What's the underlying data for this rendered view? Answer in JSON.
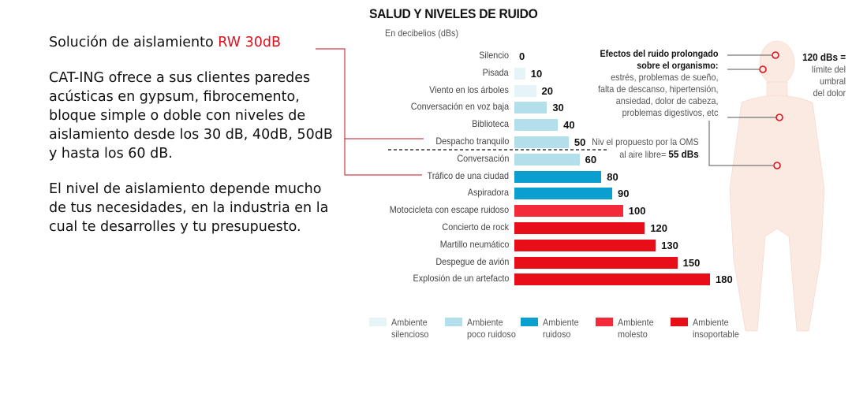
{
  "promo": {
    "heading_prefix": "Solución de aislamiento ",
    "heading_highlight": "RW 30dB",
    "paragraph1": "CAT-ING ofrece a sus clientes paredes acústicas en gypsum, fibrocemento, bloque simple o doble con niveles de aislamiento desde los 30 dB, 40dB, 50dB y hasta los 60 dB.",
    "paragraph2": "El nivel de aislamiento depende mucho de tus necesidades, en la industria en la cual te desarrolles y tu presupuesto."
  },
  "chart_data": {
    "type": "bar",
    "orientation": "horizontal",
    "title": "SALUD Y NIVELES DE RUIDO",
    "subtitle": "En decibelios (dBs)",
    "categories": [
      "Silencio",
      "Pisada",
      "Viento en los árboles",
      "Conversación en voz baja",
      "Biblioteca",
      "Despacho tranquilo",
      "Conversación",
      "Tráfico de una ciudad",
      "Aspiradora",
      "Motocicleta con escape ruidoso",
      "Concierto de rock",
      "Martillo neumático",
      "Despegue de avión",
      "Explosión de un artefacto"
    ],
    "values": [
      0,
      10,
      20,
      30,
      40,
      50,
      60,
      80,
      90,
      100,
      120,
      130,
      150,
      180
    ],
    "classes": [
      0,
      0,
      0,
      1,
      1,
      1,
      1,
      2,
      2,
      3,
      4,
      4,
      4,
      4
    ],
    "xlim": [
      0,
      180
    ],
    "legend": [
      {
        "line1": "Ambiente",
        "line2": "silencioso",
        "color": "#e6f3f7"
      },
      {
        "line1": "Ambiente",
        "line2": "poco ruidoso",
        "color": "#b3dfea"
      },
      {
        "line1": "Ambiente",
        "line2": "ruidoso",
        "color": "#0a9fcf"
      },
      {
        "line1": "Ambiente",
        "line2": "molesto",
        "color": "#f22a3a"
      },
      {
        "line1": "Ambiente",
        "line2": "insoportable",
        "color": "#e80e18"
      }
    ],
    "legend_position": "bottom",
    "reference_line": {
      "value": 55,
      "label_line1": "Niv el propuesto por la OMS",
      "label_line2_prefix": "al aire libre= ",
      "label_line2_value": "55 dBs"
    }
  },
  "effects": {
    "title_line1": "Efectos del ruido prolongado",
    "title_line2": "sobre el  organismo:",
    "lines": [
      "estrés, problemas de sueño,",
      "falta de descanso, hipertensión,",
      "ansiedad, dolor de cabeza,",
      "problemas digestivos, etc"
    ]
  },
  "pain": {
    "value": "120 dBs =",
    "lines": [
      "límite del",
      "umbral",
      "del dolor"
    ]
  },
  "colors": {
    "accent": "#e0101c"
  }
}
